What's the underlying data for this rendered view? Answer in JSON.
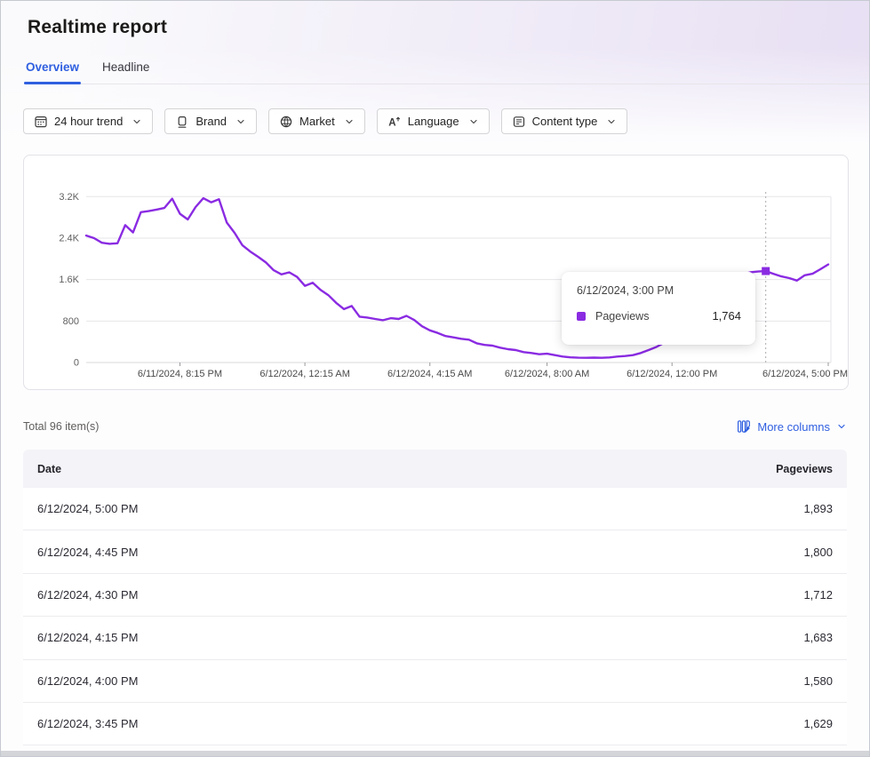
{
  "header": {
    "title": "Realtime report",
    "tabs": [
      {
        "label": "Overview",
        "active": true
      },
      {
        "label": "Headline",
        "active": false
      }
    ]
  },
  "filters": {
    "items": [
      {
        "label": "24 hour trend",
        "icon": "calendar-data-icon"
      },
      {
        "label": "Brand",
        "icon": "brand-icon"
      },
      {
        "label": "Market",
        "icon": "globe-icon"
      },
      {
        "label": "Language",
        "icon": "language-icon"
      },
      {
        "label": "Content type",
        "icon": "content-type-icon"
      }
    ]
  },
  "colors": {
    "accent_blue": "#2f5fe0",
    "series_purple": "#8a2be2",
    "grid_gray": "#e6e6ea"
  },
  "chart_data": {
    "type": "line",
    "title": "",
    "xlabel": "",
    "ylabel": "",
    "legend": "none",
    "grid": "horizontal",
    "series_name": "Pageviews",
    "series_color": "#8a2be2",
    "start_time": "6/11/2024, 5:15 PM",
    "interval_minutes": 15,
    "ylim": [
      0,
      3200
    ],
    "y_ticks": [
      {
        "value": 0,
        "label": "0"
      },
      {
        "value": 800,
        "label": "800"
      },
      {
        "value": 1600,
        "label": "1.6K"
      },
      {
        "value": 2400,
        "label": "2.4K"
      },
      {
        "value": 3200,
        "label": "3.2K"
      }
    ],
    "x_ticks": [
      {
        "index": 12,
        "label": "6/11/2024, 8:15 PM"
      },
      {
        "index": 28,
        "label": "6/12/2024, 12:15 AM"
      },
      {
        "index": 44,
        "label": "6/12/2024, 4:15 AM"
      },
      {
        "index": 59,
        "label": "6/12/2024, 8:00 AM"
      },
      {
        "index": 75,
        "label": "6/12/2024, 12:00 PM"
      },
      {
        "index": 95,
        "label": "6/12/2024, 5:00 PM"
      }
    ],
    "values": [
      2450,
      2400,
      2310,
      2290,
      2300,
      2650,
      2510,
      2900,
      2920,
      2950,
      2980,
      3160,
      2870,
      2760,
      3000,
      3170,
      3090,
      3150,
      2700,
      2500,
      2260,
      2140,
      2040,
      1930,
      1780,
      1700,
      1740,
      1650,
      1480,
      1540,
      1400,
      1300,
      1150,
      1030,
      1090,
      885,
      868,
      840,
      816,
      856,
      840,
      900,
      820,
      700,
      620,
      570,
      510,
      485,
      457,
      440,
      370,
      340,
      325,
      286,
      257,
      240,
      200,
      183,
      160,
      170,
      142,
      115,
      100,
      92,
      90,
      95,
      90,
      97,
      115,
      125,
      142,
      183,
      240,
      300,
      380,
      470,
      580,
      700,
      850,
      1000,
      1180,
      1350,
      1500,
      1620,
      1700,
      1740,
      1755,
      1764,
      1710,
      1660,
      1629,
      1580,
      1683,
      1712,
      1800,
      1893
    ],
    "hover": {
      "index": 87,
      "date": "6/12/2024, 3:00 PM",
      "series": "Pageviews",
      "value": "1,764"
    }
  },
  "table": {
    "total_text": "Total 96 item(s)",
    "more_columns_label": "More columns",
    "columns": [
      "Date",
      "Pageviews"
    ],
    "rows": [
      {
        "date": "6/12/2024, 5:00 PM",
        "pageviews": "1,893"
      },
      {
        "date": "6/12/2024, 4:45 PM",
        "pageviews": "1,800"
      },
      {
        "date": "6/12/2024, 4:30 PM",
        "pageviews": "1,712"
      },
      {
        "date": "6/12/2024, 4:15 PM",
        "pageviews": "1,683"
      },
      {
        "date": "6/12/2024, 4:00 PM",
        "pageviews": "1,580"
      },
      {
        "date": "6/12/2024, 3:45 PM",
        "pageviews": "1,629"
      }
    ]
  }
}
